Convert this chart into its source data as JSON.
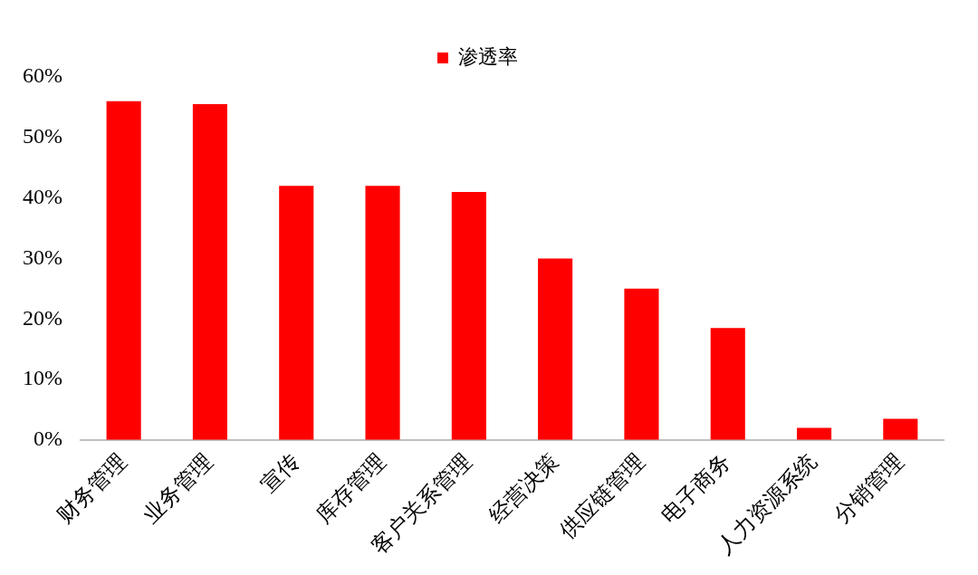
{
  "chart_data": {
    "type": "bar",
    "categories": [
      "财务管理",
      "业务管理",
      "宣传",
      "库存管理",
      "客户关系管理",
      "经营决策",
      "供应链管理",
      "电子商务",
      "人力资源系统",
      "分销管理"
    ],
    "series": [
      {
        "name": "渗透率",
        "color": "#ff0000",
        "values": [
          56,
          55.5,
          42,
          42,
          41,
          30,
          25,
          18.5,
          2,
          3.5
        ]
      }
    ],
    "ylim": [
      0,
      60
    ],
    "yticks": [
      {
        "value": 0,
        "label": "0%"
      },
      {
        "value": 10,
        "label": "10%"
      },
      {
        "value": 20,
        "label": "20%"
      },
      {
        "value": 30,
        "label": "30%"
      },
      {
        "value": 40,
        "label": "40%"
      },
      {
        "value": 50,
        "label": "50%"
      },
      {
        "value": 60,
        "label": "60%"
      }
    ],
    "legend": "top"
  }
}
